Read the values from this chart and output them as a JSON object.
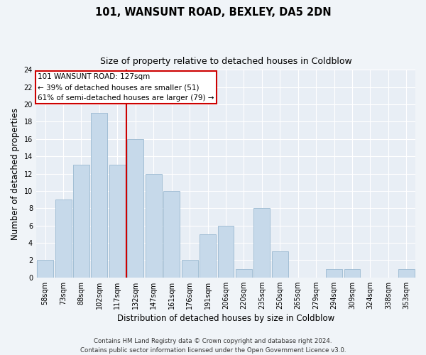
{
  "title": "101, WANSUNT ROAD, BEXLEY, DA5 2DN",
  "subtitle": "Size of property relative to detached houses in Coldblow",
  "xlabel": "Distribution of detached houses by size in Coldblow",
  "ylabel": "Number of detached properties",
  "bar_labels": [
    "58sqm",
    "73sqm",
    "88sqm",
    "102sqm",
    "117sqm",
    "132sqm",
    "147sqm",
    "161sqm",
    "176sqm",
    "191sqm",
    "206sqm",
    "220sqm",
    "235sqm",
    "250sqm",
    "265sqm",
    "279sqm",
    "294sqm",
    "309sqm",
    "324sqm",
    "338sqm",
    "353sqm"
  ],
  "bar_values": [
    2,
    9,
    13,
    19,
    13,
    16,
    12,
    10,
    2,
    5,
    6,
    1,
    8,
    3,
    0,
    0,
    1,
    1,
    0,
    0,
    1
  ],
  "bar_color": "#c6d9ea",
  "bar_edgecolor": "#9ab8d0",
  "vline_x_index": 4.5,
  "vline_color": "#cc0000",
  "ylim": [
    0,
    24
  ],
  "yticks": [
    0,
    2,
    4,
    6,
    8,
    10,
    12,
    14,
    16,
    18,
    20,
    22,
    24
  ],
  "annotation_title": "101 WANSUNT ROAD: 127sqm",
  "annotation_line1": "← 39% of detached houses are smaller (51)",
  "annotation_line2": "61% of semi-detached houses are larger (79) →",
  "annotation_box_edgecolor": "#cc0000",
  "footer_line1": "Contains HM Land Registry data © Crown copyright and database right 2024.",
  "footer_line2": "Contains public sector information licensed under the Open Government Licence v3.0.",
  "fig_facecolor": "#f0f4f8",
  "plot_facecolor": "#e8eef5"
}
